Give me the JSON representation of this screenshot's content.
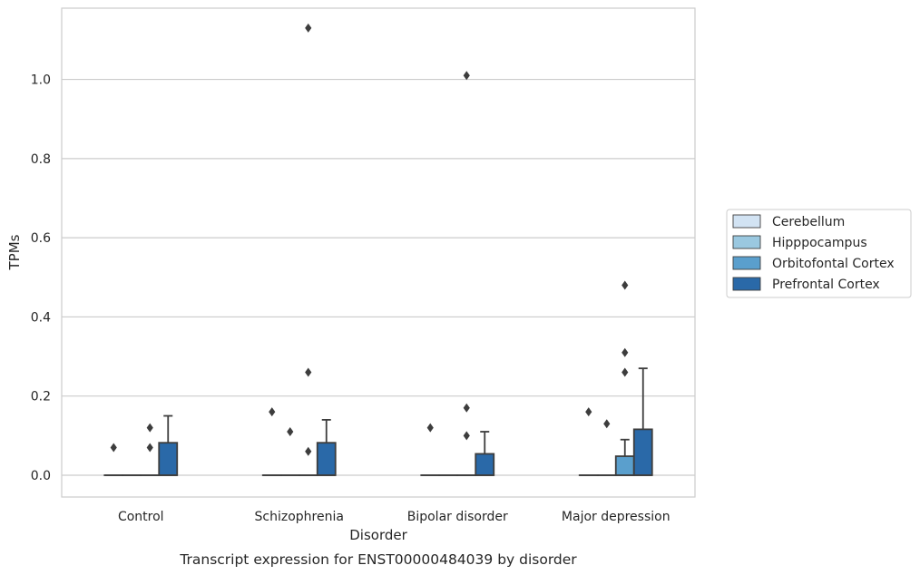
{
  "chart_data": {
    "type": "box",
    "xlabel": "Disorder",
    "ylabel": "TPMs",
    "caption": "Transcript expression for ENST00000484039 by disorder",
    "categories": [
      "Control",
      "Schizophrenia",
      "Bipolar disorder",
      "Major depression"
    ],
    "ylim": [
      -0.055,
      1.18
    ],
    "yticks": [
      0.0,
      0.2,
      0.4,
      0.6,
      0.8,
      1.0
    ],
    "ytick_labels": [
      "0.0",
      "0.2",
      "0.4",
      "0.6",
      "0.8",
      "1.0"
    ],
    "grid": "horizontal",
    "legend_position": "right",
    "series": [
      {
        "name": "Cerebellum",
        "color": "#d2e3f3",
        "boxes": [
          {
            "q1": 0,
            "median": 0,
            "q3": 0,
            "whisker_low": 0,
            "whisker_high": 0,
            "outliers": [
              0.07
            ]
          },
          {
            "q1": 0,
            "median": 0,
            "q3": 0,
            "whisker_low": 0,
            "whisker_high": 0,
            "outliers": [
              0.16
            ]
          },
          {
            "q1": 0,
            "median": 0,
            "q3": 0,
            "whisker_low": 0,
            "whisker_high": 0,
            "outliers": [
              0.12
            ]
          },
          {
            "q1": 0,
            "median": 0,
            "q3": 0,
            "whisker_low": 0,
            "whisker_high": 0,
            "outliers": [
              0.16
            ]
          }
        ]
      },
      {
        "name": "Hipppocampus",
        "color": "#9ac8e0",
        "boxes": [
          {
            "q1": 0,
            "median": 0,
            "q3": 0,
            "whisker_low": 0,
            "whisker_high": 0,
            "outliers": []
          },
          {
            "q1": 0,
            "median": 0,
            "q3": 0,
            "whisker_low": 0,
            "whisker_high": 0,
            "outliers": [
              0.11
            ]
          },
          {
            "q1": 0,
            "median": 0,
            "q3": 0,
            "whisker_low": 0,
            "whisker_high": 0,
            "outliers": []
          },
          {
            "q1": 0,
            "median": 0,
            "q3": 0,
            "whisker_low": 0,
            "whisker_high": 0,
            "outliers": [
              0.13
            ]
          }
        ]
      },
      {
        "name": "Orbitofontal Cortex",
        "color": "#5a9fcd",
        "boxes": [
          {
            "q1": 0,
            "median": 0,
            "q3": 0,
            "whisker_low": 0,
            "whisker_high": 0,
            "outliers": [
              0.07,
              0.12
            ]
          },
          {
            "q1": 0,
            "median": 0,
            "q3": 0,
            "whisker_low": 0,
            "whisker_high": 0,
            "outliers": [
              0.06,
              0.26,
              1.13
            ]
          },
          {
            "q1": 0,
            "median": 0,
            "q3": 0,
            "whisker_low": 0,
            "whisker_high": 0,
            "outliers": [
              0.1,
              0.17,
              1.01
            ]
          },
          {
            "q1": 0,
            "median": 0,
            "q3": 0.048,
            "whisker_low": 0,
            "whisker_high": 0.09,
            "outliers": [
              0.26,
              0.31,
              0.48
            ]
          }
        ]
      },
      {
        "name": "Prefrontal Cortex",
        "color": "#2a69a8",
        "boxes": [
          {
            "q1": 0,
            "median": 0,
            "q3": 0.082,
            "whisker_low": 0,
            "whisker_high": 0.15,
            "outliers": []
          },
          {
            "q1": 0,
            "median": 0,
            "q3": 0.082,
            "whisker_low": 0,
            "whisker_high": 0.14,
            "outliers": []
          },
          {
            "q1": 0,
            "median": 0,
            "q3": 0.054,
            "whisker_low": 0,
            "whisker_high": 0.11,
            "outliers": []
          },
          {
            "q1": 0,
            "median": 0,
            "q3": 0.116,
            "whisker_low": 0,
            "whisker_high": 0.27,
            "outliers": []
          }
        ]
      }
    ]
  }
}
